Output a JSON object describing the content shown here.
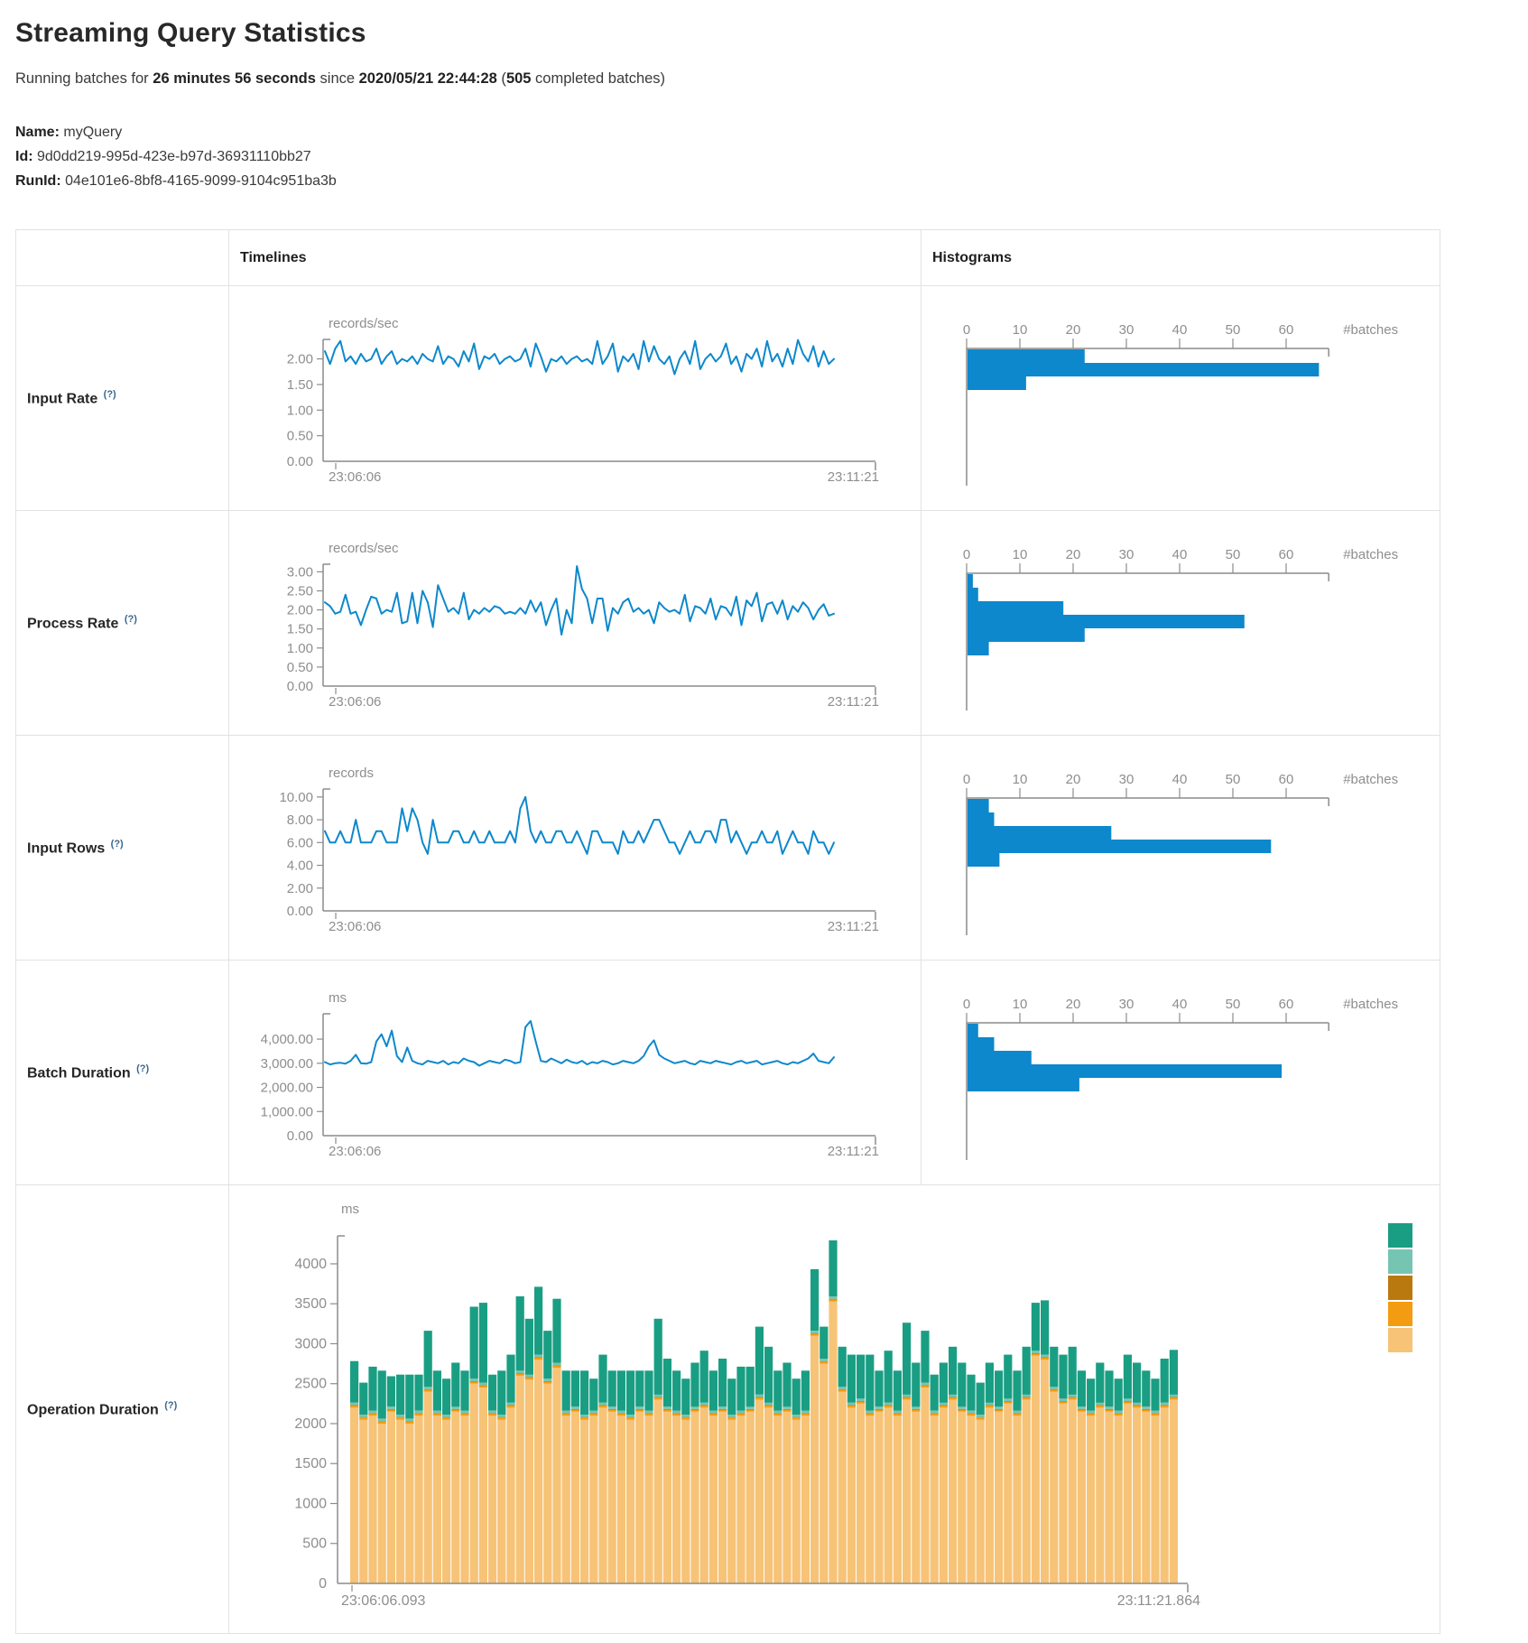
{
  "header": {
    "title": "Streaming Query Statistics",
    "subtitle": {
      "prefix": "Running batches for ",
      "duration": "26 minutes 56 seconds",
      "mid": " since ",
      "start_time": "2020/05/21 22:44:28",
      "paren": " (",
      "completed_batches": "505",
      "suffix": " completed batches)"
    },
    "name_label": "Name:",
    "name_value": "myQuery",
    "id_label": "Id:",
    "id_value": "9d0dd219-995d-423e-b97d-36931110bb27",
    "runid_label": "RunId:",
    "runid_value": "04e101e6-8bf8-4165-9099-9104c951ba3b"
  },
  "table": {
    "col_timelines": "Timelines",
    "col_histograms": "Histograms",
    "rows": [
      {
        "label": "Input Rate",
        "help": "(?)"
      },
      {
        "label": "Process Rate",
        "help": "(?)"
      },
      {
        "label": "Input Rows",
        "help": "(?)"
      },
      {
        "label": "Batch Duration",
        "help": "(?)"
      },
      {
        "label": "Operation Duration",
        "help": "(?)"
      }
    ]
  },
  "chart_data": {
    "timelines": [
      {
        "type": "line",
        "name": "input-rate-timeline",
        "unit": "records/sec",
        "color": "#0d88cc",
        "ymax": 2.38,
        "yticks": [
          {
            "v": 2,
            "label": "2.00"
          },
          {
            "v": 1.5,
            "label": "1.50"
          },
          {
            "v": 1,
            "label": "1.00"
          },
          {
            "v": 0.5,
            "label": "0.50"
          },
          {
            "v": 0,
            "label": "0.00"
          }
        ],
        "x_start": "23:06:06",
        "x_end": "23:11:21",
        "values": [
          2.15,
          1.9,
          2.2,
          2.35,
          1.95,
          2.05,
          1.9,
          2.1,
          1.95,
          2.0,
          2.2,
          1.9,
          2.05,
          2.15,
          1.9,
          2.0,
          1.95,
          2.05,
          1.9,
          2.1,
          2.0,
          1.95,
          2.25,
          1.9,
          2.05,
          2.0,
          1.85,
          2.15,
          1.95,
          2.3,
          1.8,
          2.05,
          2.0,
          2.1,
          1.9,
          2.0,
          2.05,
          1.95,
          2.0,
          2.2,
          1.85,
          2.3,
          2.05,
          1.75,
          2.0,
          1.95,
          2.05,
          1.9,
          2.0,
          2.05,
          1.95,
          2.0,
          1.9,
          2.35,
          1.9,
          2.05,
          2.3,
          1.75,
          2.05,
          1.95,
          2.1,
          1.8,
          2.35,
          1.95,
          2.25,
          2.0,
          1.9,
          2.05,
          1.7,
          2.0,
          2.15,
          1.9,
          2.35,
          1.8,
          2.0,
          2.1,
          1.95,
          2.05,
          2.3,
          1.9,
          2.05,
          1.75,
          2.1,
          2.0,
          2.2,
          1.85,
          2.35,
          1.95,
          2.1,
          1.85,
          2.2,
          1.9,
          2.37,
          2.1,
          1.95,
          2.25,
          1.85,
          2.15,
          1.9,
          2.0
        ]
      },
      {
        "type": "line",
        "name": "process-rate-timeline",
        "unit": "records/sec",
        "color": "#0d88cc",
        "ymax": 3.2,
        "yticks": [
          {
            "v": 3,
            "label": "3.00"
          },
          {
            "v": 2.5,
            "label": "2.50"
          },
          {
            "v": 2,
            "label": "2.00"
          },
          {
            "v": 1.5,
            "label": "1.50"
          },
          {
            "v": 1,
            "label": "1.00"
          },
          {
            "v": 0.5,
            "label": "0.50"
          },
          {
            "v": 0,
            "label": "0.00"
          }
        ],
        "x_start": "23:06:06",
        "x_end": "23:11:21",
        "values": [
          2.2,
          2.1,
          1.9,
          1.95,
          2.4,
          1.9,
          1.95,
          1.6,
          2.0,
          2.35,
          2.3,
          1.9,
          2.0,
          1.95,
          2.45,
          1.65,
          1.7,
          2.45,
          1.65,
          2.5,
          2.2,
          1.55,
          2.65,
          2.3,
          1.95,
          2.05,
          1.9,
          2.45,
          1.75,
          2.0,
          1.9,
          2.05,
          1.95,
          2.1,
          2.05,
          1.9,
          1.95,
          1.9,
          2.05,
          1.9,
          2.25,
          1.95,
          2.2,
          1.6,
          2.0,
          2.3,
          1.35,
          2.0,
          1.65,
          3.15,
          2.55,
          2.3,
          1.65,
          2.3,
          2.3,
          1.45,
          2.05,
          1.9,
          2.2,
          2.3,
          1.95,
          2.05,
          1.9,
          2.0,
          1.65,
          2.2,
          2.05,
          1.95,
          2.0,
          1.9,
          2.4,
          1.7,
          2.1,
          2.05,
          1.9,
          2.3,
          1.75,
          2.1,
          2.05,
          1.85,
          2.35,
          1.6,
          2.25,
          2.1,
          2.45,
          1.7,
          2.15,
          2.2,
          1.9,
          2.25,
          1.75,
          2.1,
          1.95,
          2.2,
          2.05,
          1.75,
          2.0,
          2.15,
          1.85,
          1.9
        ]
      },
      {
        "type": "line",
        "name": "input-rows-timeline",
        "unit": "records",
        "color": "#0d88cc",
        "ymax": 10.7,
        "yticks": [
          {
            "v": 10,
            "label": "10.00"
          },
          {
            "v": 8,
            "label": "8.00"
          },
          {
            "v": 6,
            "label": "6.00"
          },
          {
            "v": 4,
            "label": "4.00"
          },
          {
            "v": 2,
            "label": "2.00"
          },
          {
            "v": 0,
            "label": "0.00"
          }
        ],
        "x_start": "23:06:06",
        "x_end": "23:11:21",
        "values": [
          7,
          6,
          6,
          7,
          6,
          6,
          8,
          6,
          6,
          6,
          7,
          7,
          6,
          6,
          6,
          9,
          7,
          9,
          8,
          6,
          5,
          8,
          6,
          6,
          6,
          7,
          7,
          6,
          6,
          7,
          6,
          6,
          7,
          6,
          6,
          6,
          7,
          6,
          9,
          10,
          7,
          6,
          7,
          6,
          6,
          7,
          7,
          6,
          6,
          7,
          6,
          5,
          7,
          7,
          6,
          6,
          6,
          5,
          7,
          6,
          6,
          7,
          6,
          7,
          8,
          8,
          7,
          6,
          6,
          5,
          6,
          7,
          6,
          6,
          7,
          7,
          6,
          8,
          8,
          6,
          7,
          6,
          5,
          6,
          6,
          7,
          6,
          6,
          7,
          5,
          6,
          7,
          6,
          6,
          5,
          7,
          6,
          6,
          5,
          6
        ]
      },
      {
        "type": "line",
        "name": "batch-duration-timeline",
        "unit": "ms",
        "color": "#0d88cc",
        "ymax": 5050,
        "yticks": [
          {
            "v": 4000,
            "label": "4,000.00"
          },
          {
            "v": 3000,
            "label": "3,000.00"
          },
          {
            "v": 2000,
            "label": "2,000.00"
          },
          {
            "v": 1000,
            "label": "1,000.00"
          },
          {
            "v": 0,
            "label": "0.00"
          }
        ],
        "x_start": "23:06:06",
        "x_end": "23:11:21",
        "values": [
          3050,
          2950,
          3000,
          3020,
          2980,
          3100,
          3350,
          3000,
          2980,
          3050,
          3900,
          4200,
          3700,
          4350,
          3300,
          3050,
          3650,
          3100,
          3000,
          2950,
          3100,
          3050,
          3000,
          3100,
          2950,
          3050,
          3000,
          3200,
          3100,
          3050,
          2900,
          3000,
          3100,
          3050,
          3000,
          3150,
          3100,
          3000,
          3050,
          4500,
          4750,
          3900,
          3100,
          3050,
          3200,
          3100,
          3000,
          3150,
          3050,
          3000,
          3100,
          2950,
          3050,
          3000,
          3100,
          3050,
          2950,
          3000,
          3100,
          3050,
          3000,
          3100,
          3300,
          3700,
          3950,
          3350,
          3200,
          3100,
          3000,
          3050,
          3100,
          3000,
          2950,
          3100,
          3050,
          3000,
          3100,
          3050,
          3000,
          2950,
          3050,
          3100,
          3000,
          3050,
          3100,
          2950,
          3000,
          3050,
          3100,
          3000,
          2950,
          3050,
          3000,
          3100,
          3200,
          3400,
          3100,
          3050,
          3000,
          3250
        ]
      }
    ],
    "histograms": [
      {
        "type": "bar",
        "name": "input-rate-histogram",
        "color": "#0d88cc",
        "xlabel": "#batches",
        "xticks": [
          0,
          10,
          20,
          30,
          40,
          50,
          60
        ],
        "xmax": 68,
        "values": [
          22,
          66,
          11
        ]
      },
      {
        "type": "bar",
        "name": "process-rate-histogram",
        "color": "#0d88cc",
        "xlabel": "#batches",
        "xticks": [
          0,
          10,
          20,
          30,
          40,
          50,
          60
        ],
        "xmax": 68,
        "values": [
          1,
          2,
          18,
          52,
          22,
          4
        ]
      },
      {
        "type": "bar",
        "name": "input-rows-histogram",
        "color": "#0d88cc",
        "xlabel": "#batches",
        "xticks": [
          0,
          10,
          20,
          30,
          40,
          50,
          60
        ],
        "xmax": 68,
        "values": [
          4,
          5,
          27,
          57,
          6
        ]
      },
      {
        "type": "bar",
        "name": "batch-duration-histogram",
        "color": "#0d88cc",
        "xlabel": "#batches",
        "xticks": [
          0,
          10,
          20,
          30,
          40,
          50,
          60
        ],
        "xmax": 68,
        "values": [
          2,
          5,
          12,
          59,
          21
        ]
      }
    ],
    "operation_duration": {
      "type": "stacked-bar",
      "name": "operation-duration-chart",
      "unit": "ms",
      "ymax": 4350,
      "yticks": [
        {
          "v": 4000,
          "label": "4000"
        },
        {
          "v": 3500,
          "label": "3500"
        },
        {
          "v": 3000,
          "label": "3000"
        },
        {
          "v": 2500,
          "label": "2500"
        },
        {
          "v": 2000,
          "label": "2000"
        },
        {
          "v": 1500,
          "label": "1500"
        },
        {
          "v": 1000,
          "label": "1000"
        },
        {
          "v": 500,
          "label": "500"
        },
        {
          "v": 0,
          "label": "0"
        }
      ],
      "x_start": "23:06:06.093",
      "x_end": "23:11:21.864",
      "colors": {
        "tan": "#f6c377",
        "orange": "#f39c12",
        "dark_orange": "#ba790f",
        "light_teal": "#76c5b3",
        "teal": "#1a9e83"
      },
      "per_bar": {
        "orange": 25,
        "dark_orange": 8,
        "light_teal": 30
      },
      "legend_colors": [
        "#1a9e83",
        "#76c5b3",
        "#ba790f",
        "#f39c12",
        "#f6c377"
      ],
      "tan": [
        2200,
        2050,
        2100,
        2000,
        2150,
        2050,
        2000,
        2100,
        2400,
        2100,
        2050,
        2150,
        2100,
        2500,
        2450,
        2100,
        2050,
        2200,
        2600,
        2550,
        2800,
        2500,
        2700,
        2100,
        2150,
        2050,
        2100,
        2200,
        2150,
        2100,
        2050,
        2150,
        2100,
        2300,
        2150,
        2100,
        2050,
        2150,
        2200,
        2100,
        2150,
        2050,
        2100,
        2150,
        2300,
        2200,
        2100,
        2150,
        2050,
        2100,
        3100,
        2750,
        3530,
        2400,
        2200,
        2250,
        2100,
        2150,
        2200,
        2100,
        2300,
        2150,
        2450,
        2100,
        2200,
        2300,
        2150,
        2100,
        2050,
        2200,
        2150,
        2250,
        2100,
        2300,
        2850,
        2800,
        2400,
        2250,
        2300,
        2150,
        2100,
        2200,
        2150,
        2100,
        2250,
        2200,
        2150,
        2100,
        2200,
        2300
      ],
      "teal": [
        520,
        400,
        550,
        600,
        380,
        500,
        550,
        450,
        700,
        500,
        450,
        550,
        500,
        900,
        1000,
        450,
        550,
        600,
        930,
        700,
        850,
        600,
        800,
        500,
        450,
        550,
        400,
        600,
        450,
        500,
        550,
        450,
        500,
        950,
        600,
        500,
        450,
        550,
        650,
        500,
        600,
        450,
        550,
        500,
        850,
        700,
        500,
        550,
        450,
        500,
        770,
        400,
        700,
        500,
        600,
        550,
        700,
        450,
        650,
        500,
        900,
        550,
        650,
        450,
        500,
        600,
        550,
        450,
        400,
        500,
        450,
        550,
        500,
        600,
        600,
        680,
        500,
        550,
        600,
        450,
        400,
        500,
        450,
        400,
        550,
        500,
        450,
        400,
        550,
        560
      ]
    }
  }
}
